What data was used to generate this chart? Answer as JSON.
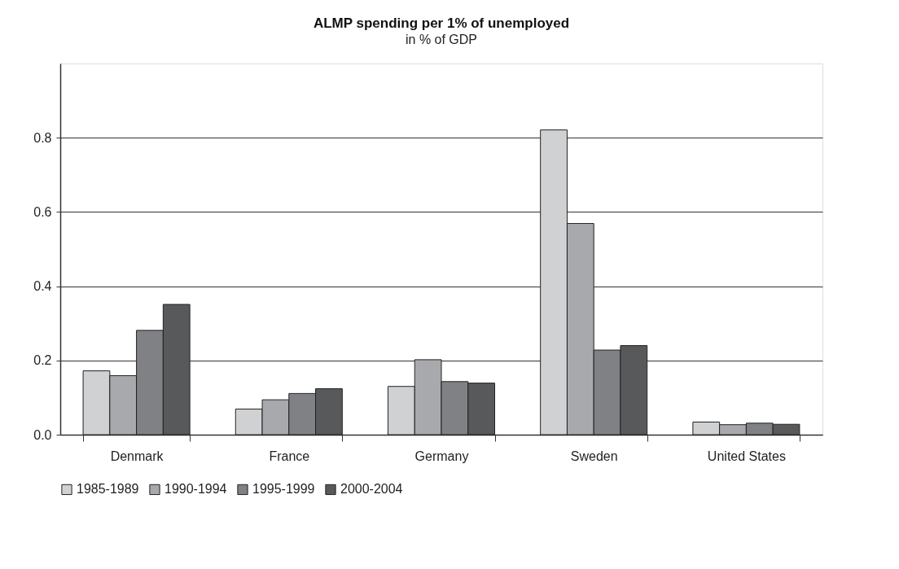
{
  "chart_data": {
    "type": "bar",
    "title": "ALMP spending per 1% of unemployed",
    "subtitle": "in % of GDP",
    "categories": [
      "Denmark",
      "France",
      "Germany",
      "Sweden",
      "United States"
    ],
    "series": [
      {
        "name": "1985-1989",
        "color": "#d0d1d3",
        "values": [
          0.172,
          0.069,
          0.13,
          0.821,
          0.034
        ]
      },
      {
        "name": "1990-1994",
        "color": "#a8a9ac",
        "values": [
          0.159,
          0.094,
          0.202,
          0.569,
          0.027
        ]
      },
      {
        "name": "1995-1999",
        "color": "#808184",
        "values": [
          0.281,
          0.111,
          0.143,
          0.228,
          0.031
        ]
      },
      {
        "name": "2000-2004",
        "color": "#58595b",
        "values": [
          0.351,
          0.124,
          0.139,
          0.24,
          0.028
        ]
      }
    ],
    "ylim": [
      0,
      1.0
    ],
    "yticks": [
      {
        "value": 0,
        "label": "0.0"
      },
      {
        "value": 0.2,
        "label": "0.2"
      },
      {
        "value": 0.4,
        "label": "0.4"
      },
      {
        "value": 0.6,
        "label": "0.6"
      },
      {
        "value": 0.8,
        "label": "0.8"
      }
    ],
    "grid": "y",
    "legend": "bottom"
  }
}
